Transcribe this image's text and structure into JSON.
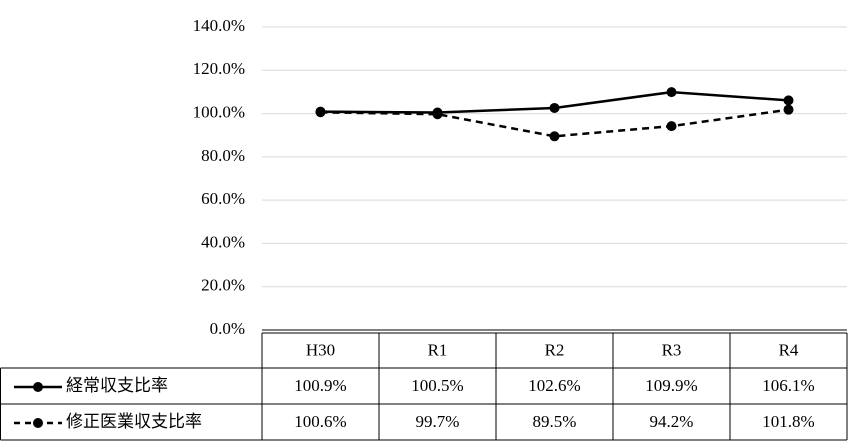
{
  "chart_data": {
    "type": "line",
    "categories": [
      "H30",
      "R1",
      "R2",
      "R3",
      "R4"
    ],
    "series": [
      {
        "name": "経常収支比率",
        "color": "#000000",
        "line_style": "solid",
        "values": [
          100.9,
          100.5,
          102.6,
          109.9,
          106.1
        ],
        "value_labels": [
          "100.9%",
          "100.5%",
          "102.6%",
          "109.9%",
          "106.1%"
        ]
      },
      {
        "name": "修正医業収支比率",
        "color": "#000000",
        "line_style": "dashed",
        "values": [
          100.6,
          99.7,
          89.5,
          94.2,
          101.8
        ],
        "value_labels": [
          "100.6%",
          "99.7%",
          "89.5%",
          "94.2%",
          "101.8%"
        ]
      }
    ],
    "ylim": [
      0,
      140
    ],
    "yticks": [
      {
        "value": 0,
        "label": "0.0%"
      },
      {
        "value": 20,
        "label": "20.0%"
      },
      {
        "value": 40,
        "label": "40.0%"
      },
      {
        "value": 60,
        "label": "60.0%"
      },
      {
        "value": 80,
        "label": "80.0%"
      },
      {
        "value": 100,
        "label": "100.0%"
      },
      {
        "value": 120,
        "label": "120.0%"
      },
      {
        "value": 140,
        "label": "140.0%"
      }
    ],
    "grid": true,
    "data_table": true
  }
}
